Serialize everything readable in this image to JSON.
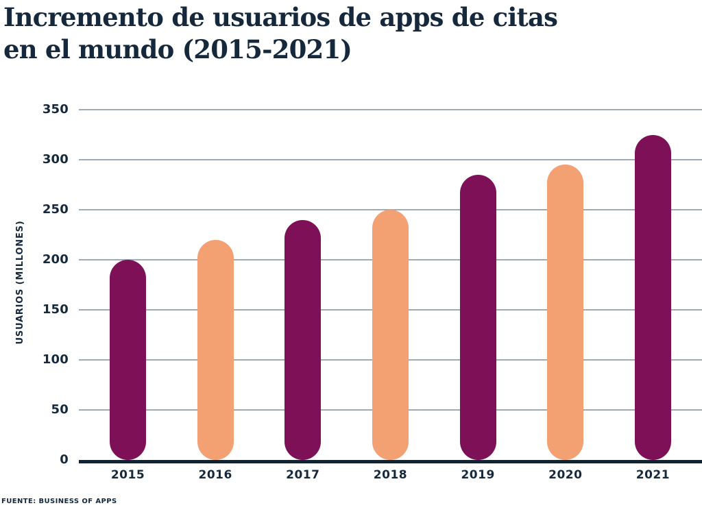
{
  "title": {
    "line1": "Incremento de usuarios de apps de citas",
    "line2": "en el mundo (2015-2021)"
  },
  "source": "FUENTE: BUSINESS OF APPS",
  "chart_data": {
    "type": "bar",
    "title": "Incremento de usuarios de apps de citas en el mundo (2015-2021)",
    "categories": [
      "2015",
      "2016",
      "2017",
      "2018",
      "2019",
      "2020",
      "2021"
    ],
    "values": [
      200,
      220,
      240,
      250,
      285,
      295,
      325
    ],
    "xlabel": "",
    "ylabel": "USUARIOS (MILLONES)",
    "ylim": [
      0,
      350
    ],
    "yticks": [
      0,
      50,
      100,
      150,
      200,
      250,
      300,
      350
    ],
    "grid": true,
    "legend_position": "none",
    "bar_palette": [
      "#7D1056",
      "#F3A173"
    ],
    "colors": {
      "bar_magenta": "#7D1056",
      "bar_peach": "#F3A173",
      "text_navy": "#15283C",
      "gridline": "#A0AAB3",
      "axis": "#0D2435",
      "background": "#FFFFFF"
    }
  }
}
